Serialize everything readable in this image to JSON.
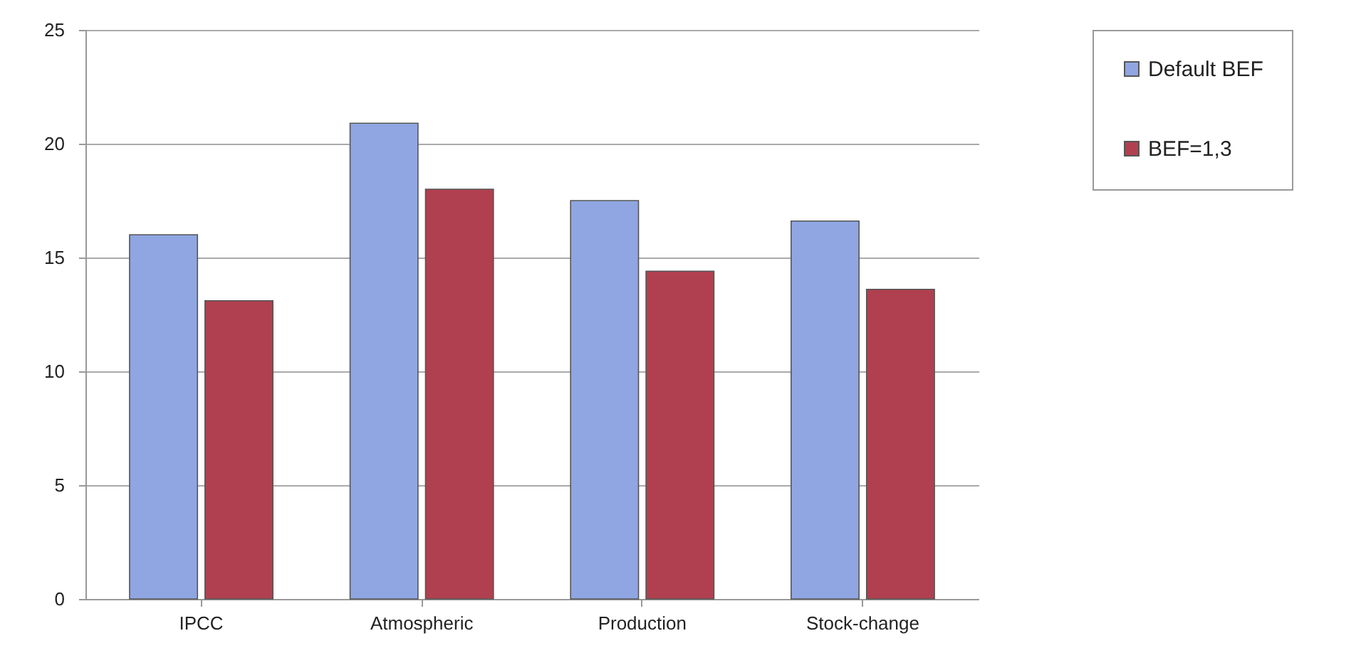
{
  "chart_data": {
    "type": "bar",
    "categories": [
      "IPCC",
      "Atmospheric",
      "Production",
      "Stock-change"
    ],
    "series": [
      {
        "name": "Default BEF",
        "color": "#8fa6e2",
        "values": [
          16.0,
          20.9,
          17.5,
          16.6
        ]
      },
      {
        "name": "BEF=1,3",
        "color": "#b0404f",
        "values": [
          13.1,
          18.0,
          14.4,
          13.6
        ]
      }
    ],
    "ylim": [
      0,
      25
    ],
    "yticks": [
      0,
      5,
      10,
      15,
      20,
      25
    ],
    "grid": "y",
    "legend": "right"
  }
}
